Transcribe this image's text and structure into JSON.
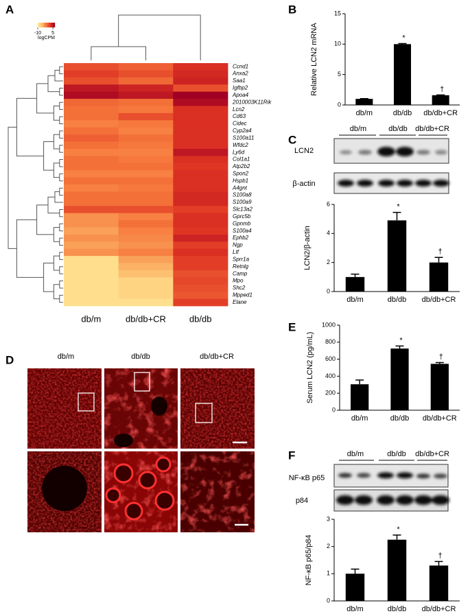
{
  "chart_data": [
    {
      "type": "heatmap",
      "panel_label": "A",
      "columns": [
        "db/m",
        "db/db+CR",
        "db/db"
      ],
      "rows": [
        "Ccnd1",
        "Anxa2",
        "Saa1",
        "Igfbp2",
        "Apoa4",
        "2010003K11Rik",
        "Lcn2",
        "Cd63",
        "Cidec",
        "Cyp2a4",
        "S100a11",
        "Wfdc2",
        "Ly6d",
        "Col1a1",
        "Atp2b2",
        "Spon2",
        "Hspb1",
        "A4gnt",
        "S100a8",
        "S100a9",
        "Slc13a2",
        "Gprc5b",
        "Gpnmb",
        "S100a4",
        "Ephb2",
        "Ngp",
        "Ltf",
        "Sprr1a",
        "Retnlg",
        "Camp",
        "Mpo",
        "Shc2",
        "Mpped1",
        "Elane"
      ],
      "values": [
        [
          1,
          0,
          3
        ],
        [
          2,
          1,
          3.5
        ],
        [
          1,
          -0.5,
          4
        ],
        [
          5,
          4,
          1
        ],
        [
          6,
          5,
          7
        ],
        [
          -0.5,
          -1,
          6
        ],
        [
          -1,
          -1.5,
          3
        ],
        [
          -1,
          1,
          3
        ],
        [
          -2,
          -1.5,
          3
        ],
        [
          -1,
          -2,
          3
        ],
        [
          0,
          -1,
          3
        ],
        [
          -1,
          -1.5,
          3
        ],
        [
          -2,
          -2,
          5
        ],
        [
          -1,
          -1.5,
          3
        ],
        [
          -1,
          -1,
          2.5
        ],
        [
          -2,
          -2,
          3
        ],
        [
          -1,
          -1,
          3
        ],
        [
          -2,
          -1.5,
          3
        ],
        [
          -1,
          -1,
          3.5
        ],
        [
          -1,
          -1,
          3.5
        ],
        [
          1,
          1,
          2
        ],
        [
          -3,
          -2,
          3
        ],
        [
          -3,
          -1,
          3
        ],
        [
          -4,
          -2,
          2.5
        ],
        [
          -3,
          -2.5,
          4
        ],
        [
          -4,
          -3,
          2
        ],
        [
          -3,
          -2,
          3
        ],
        [
          -9,
          -4,
          2
        ],
        [
          -9,
          -5,
          2
        ],
        [
          -9,
          -6,
          1
        ],
        [
          -9,
          -8,
          1.5
        ],
        [
          -9,
          -8,
          1
        ],
        [
          -9,
          -8,
          0.5
        ],
        [
          -9,
          -9,
          2
        ]
      ],
      "clim": [
        -10,
        7
      ],
      "cticks": [
        -10,
        5
      ],
      "clabel": "logCPM"
    },
    {
      "type": "bar",
      "panel_label": "B",
      "ylabel": "Relative LCN2 mRNA",
      "categories": [
        "db/m",
        "db/db",
        "db/db+CR"
      ],
      "values": [
        1,
        10,
        1.6
      ],
      "errors": [
        0.05,
        0.1,
        0.05
      ],
      "markers": [
        null,
        "*",
        "†"
      ],
      "color": "#000000",
      "ylim": [
        0,
        15
      ],
      "yticks": [
        0,
        5,
        10,
        15
      ]
    },
    {
      "type": "bar",
      "panel_label": "C",
      "ylabel": "LCN2/β-actin",
      "categories": [
        "db/m",
        "db/db",
        "db/db+CR"
      ],
      "values": [
        1,
        4.9,
        2.0
      ],
      "errors": [
        0.2,
        0.55,
        0.35
      ],
      "markers": [
        null,
        "*",
        "†"
      ],
      "color": "#000000",
      "ylim": [
        0,
        6
      ],
      "yticks": [
        0,
        2,
        4,
        6
      ]
    },
    {
      "type": "bar",
      "panel_label": "E",
      "ylabel": "Serum LCN2 (pg/mL)",
      "categories": [
        "db/m",
        "db/db",
        "db/db+CR"
      ],
      "values": [
        305,
        725,
        545
      ],
      "errors": [
        50,
        30,
        15
      ],
      "markers": [
        null,
        "*",
        "†"
      ],
      "color": "#000000",
      "ylim": [
        0,
        1000
      ],
      "yticks": [
        0,
        200,
        400,
        600,
        800,
        1000
      ]
    },
    {
      "type": "bar",
      "panel_label": "F",
      "ylabel": "NF-κB p65/p84",
      "categories": [
        "db/m",
        "db/db",
        "db/db+CR"
      ],
      "values": [
        1.0,
        2.25,
        1.3
      ],
      "errors": [
        0.17,
        0.17,
        0.15
      ],
      "markers": [
        null,
        "*",
        "†"
      ],
      "color": "#000000",
      "ylim": [
        0,
        3
      ],
      "yticks": [
        0,
        1,
        2,
        3
      ]
    }
  ],
  "blots": [
    {
      "lanes": [
        "db/m",
        "db/db",
        "db/db+CR"
      ],
      "rows": [
        "LCN2",
        "β-actin"
      ]
    },
    {
      "lanes": [
        "db/m",
        "db/db",
        "db/db+CR"
      ],
      "rows": [
        "NF-κB p65",
        "p84"
      ]
    }
  ],
  "micrographs": {
    "panel_label": "D",
    "columns": [
      "db/m",
      "db/db",
      "db/db+CR"
    ]
  }
}
